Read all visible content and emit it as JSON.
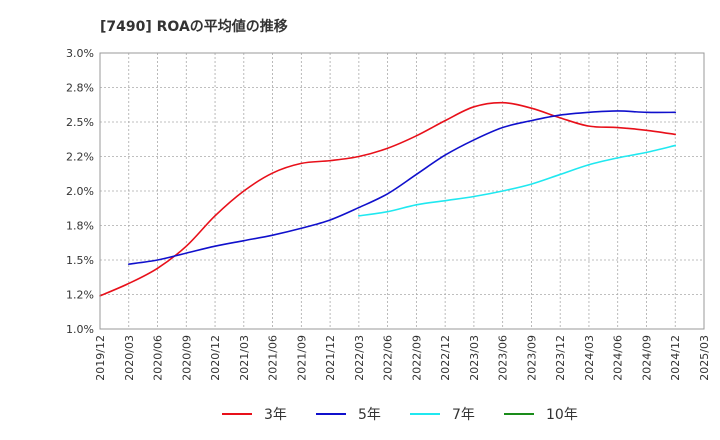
{
  "chart_data": {
    "type": "line",
    "title": "[7490]  ROAの平均値の推移",
    "xlabel": "",
    "ylabel": "",
    "ylim": [
      1.0,
      3.0
    ],
    "y_ticks": [
      "1.0%",
      "1.2%",
      "1.5%",
      "1.8%",
      "2.0%",
      "2.2%",
      "2.5%",
      "2.8%",
      "3.0%"
    ],
    "x_ticks": [
      "2019/12",
      "2020/03",
      "2020/06",
      "2020/09",
      "2020/12",
      "2021/03",
      "2021/06",
      "2021/09",
      "2021/12",
      "2022/03",
      "2022/06",
      "2022/09",
      "2022/12",
      "2023/03",
      "2023/06",
      "2023/09",
      "2023/12",
      "2024/03",
      "2024/06",
      "2024/09",
      "2024/12",
      "2025/03"
    ],
    "grid": true,
    "legend_position": "bottom",
    "series": [
      {
        "name": "3年",
        "color": "#e8101a",
        "points": [
          [
            "2019/12",
            1.24
          ],
          [
            "2020/03",
            1.33
          ],
          [
            "2020/06",
            1.44
          ],
          [
            "2020/09",
            1.6
          ],
          [
            "2020/12",
            1.82
          ],
          [
            "2021/03",
            2.0
          ],
          [
            "2021/06",
            2.13
          ],
          [
            "2021/09",
            2.2
          ],
          [
            "2021/12",
            2.22
          ],
          [
            "2022/03",
            2.25
          ],
          [
            "2022/06",
            2.31
          ],
          [
            "2022/09",
            2.4
          ],
          [
            "2022/12",
            2.51
          ],
          [
            "2023/03",
            2.61
          ],
          [
            "2023/06",
            2.64
          ],
          [
            "2023/09",
            2.6
          ],
          [
            "2023/12",
            2.53
          ],
          [
            "2024/03",
            2.47
          ],
          [
            "2024/06",
            2.46
          ],
          [
            "2024/09",
            2.44
          ],
          [
            "2024/12",
            2.41
          ]
        ]
      },
      {
        "name": "5年",
        "color": "#1010cc",
        "points": [
          [
            "2020/03",
            1.47
          ],
          [
            "2020/06",
            1.5
          ],
          [
            "2020/09",
            1.55
          ],
          [
            "2020/12",
            1.6
          ],
          [
            "2021/03",
            1.64
          ],
          [
            "2021/06",
            1.68
          ],
          [
            "2021/09",
            1.73
          ],
          [
            "2021/12",
            1.79
          ],
          [
            "2022/03",
            1.88
          ],
          [
            "2022/06",
            1.98
          ],
          [
            "2022/09",
            2.12
          ],
          [
            "2022/12",
            2.26
          ],
          [
            "2023/03",
            2.37
          ],
          [
            "2023/06",
            2.46
          ],
          [
            "2023/09",
            2.51
          ],
          [
            "2023/12",
            2.55
          ],
          [
            "2024/03",
            2.57
          ],
          [
            "2024/06",
            2.58
          ],
          [
            "2024/09",
            2.57
          ],
          [
            "2024/12",
            2.57
          ]
        ]
      },
      {
        "name": "7年",
        "color": "#20e8f0",
        "points": [
          [
            "2022/03",
            1.82
          ],
          [
            "2022/06",
            1.85
          ],
          [
            "2022/09",
            1.9
          ],
          [
            "2022/12",
            1.93
          ],
          [
            "2023/03",
            1.96
          ],
          [
            "2023/06",
            2.0
          ],
          [
            "2023/09",
            2.05
          ],
          [
            "2023/12",
            2.12
          ],
          [
            "2024/03",
            2.19
          ],
          [
            "2024/06",
            2.24
          ],
          [
            "2024/09",
            2.28
          ],
          [
            "2024/12",
            2.33
          ]
        ]
      },
      {
        "name": "10年",
        "color": "#1a8c1a",
        "points": []
      }
    ]
  }
}
